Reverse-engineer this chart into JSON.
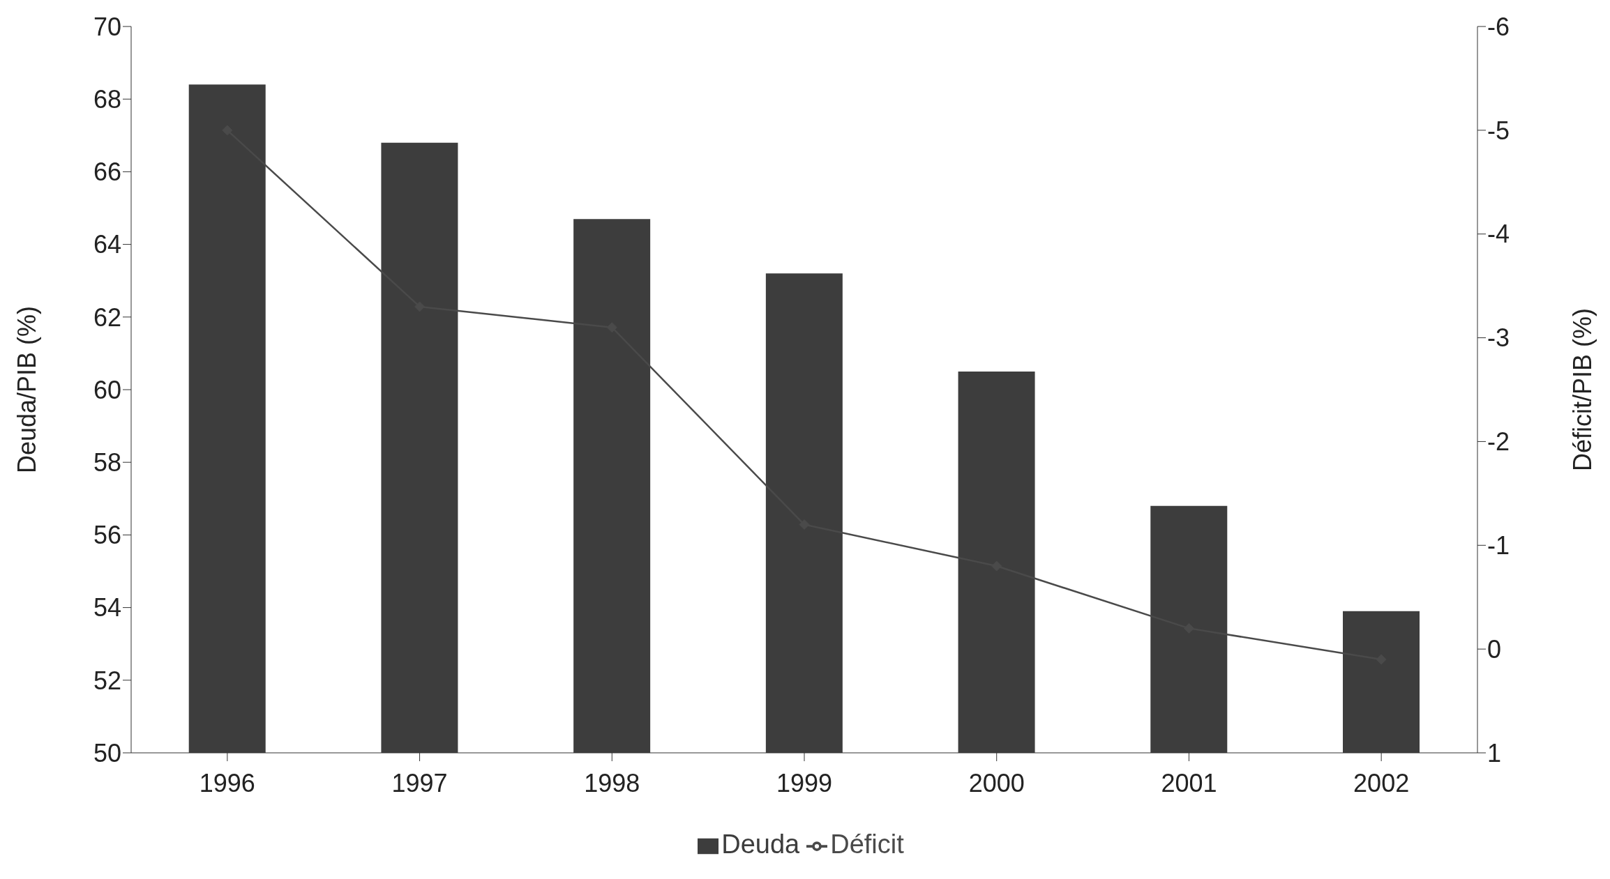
{
  "chart_data": {
    "type": "bar",
    "ylabel": "Deuda/PIB (%)",
    "y2label": "Déficit/PIB (%)",
    "categories": [
      "1996",
      "1997",
      "1998",
      "1999",
      "2000",
      "2001",
      "2002"
    ],
    "series": [
      {
        "name": "Deuda",
        "color": "#3d3d3d",
        "values": [
          68.4,
          66.8,
          64.7,
          63.2,
          60.5,
          56.8,
          53.9
        ]
      },
      {
        "name": "Déficit",
        "type": "line",
        "axis": "y2",
        "color": "#4a4a4a",
        "marker": "diamond",
        "values": [
          -5.0,
          -3.3,
          -3.1,
          -1.2,
          -0.8,
          -0.2,
          0.1
        ]
      }
    ],
    "ylim": [
      50,
      70
    ],
    "yticks": [
      50,
      52,
      54,
      56,
      58,
      60,
      62,
      64,
      66,
      68,
      70
    ],
    "y2lim": [
      1,
      -6
    ],
    "y2ticks": [
      1,
      0,
      -1,
      -2,
      -3,
      -4,
      -5,
      -6
    ],
    "grid": false,
    "legend": "bottom"
  }
}
